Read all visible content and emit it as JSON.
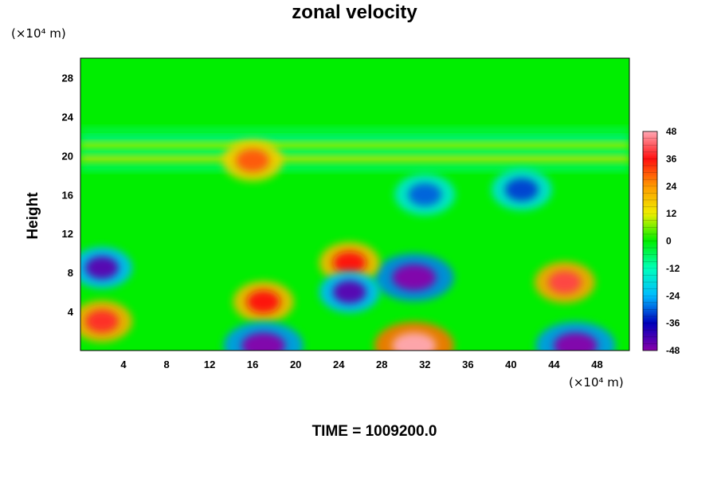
{
  "title": "zonal velocity",
  "y_unit": "(×10⁴ m)",
  "x_unit": "(×10⁴ m)",
  "ylabel": "Height",
  "time_label": "TIME = 1009200.0",
  "chart_data": {
    "type": "heatmap",
    "title": "zonal velocity",
    "xlabel": "",
    "ylabel": "Height",
    "x_unit": "(×10⁴ m)",
    "y_unit": "(×10⁴ m)",
    "xlim": [
      0,
      51
    ],
    "ylim": [
      0,
      30
    ],
    "x_ticks": [
      4,
      8,
      12,
      16,
      20,
      24,
      28,
      32,
      36,
      40,
      44,
      48
    ],
    "y_ticks": [
      4,
      8,
      12,
      16,
      20,
      24,
      28
    ],
    "colorbar": {
      "range": [
        -48,
        48
      ],
      "ticks": [
        48,
        36,
        24,
        12,
        0,
        -12,
        -24,
        -36,
        -48
      ],
      "colors": [
        "#ffa8b4",
        "#ff1010",
        "#ff9900",
        "#eeee00",
        "#00ee00",
        "#00ffbb",
        "#00bbff",
        "#0000bb",
        "#8800aa"
      ]
    },
    "features": [
      {
        "x": 31,
        "y": 0.5,
        "value": 50
      },
      {
        "x": 31,
        "y": 7.5,
        "value": -50
      },
      {
        "x": 45,
        "y": 7,
        "value": 40
      },
      {
        "x": 17,
        "y": 5,
        "value": 36
      },
      {
        "x": 17,
        "y": 0.5,
        "value": -48
      },
      {
        "x": 46,
        "y": 0.5,
        "value": -48
      },
      {
        "x": 2,
        "y": 3,
        "value": 38
      },
      {
        "x": 2,
        "y": 8.5,
        "value": -44
      },
      {
        "x": 25,
        "y": 9,
        "value": 36
      },
      {
        "x": 25,
        "y": 6,
        "value": -44
      },
      {
        "x": 16,
        "y": 19.5,
        "value": 30
      },
      {
        "x": 41,
        "y": 16.5,
        "value": -32
      },
      {
        "x": 32,
        "y": 16,
        "value": -30
      }
    ],
    "time": "TIME = 1009200.0"
  }
}
